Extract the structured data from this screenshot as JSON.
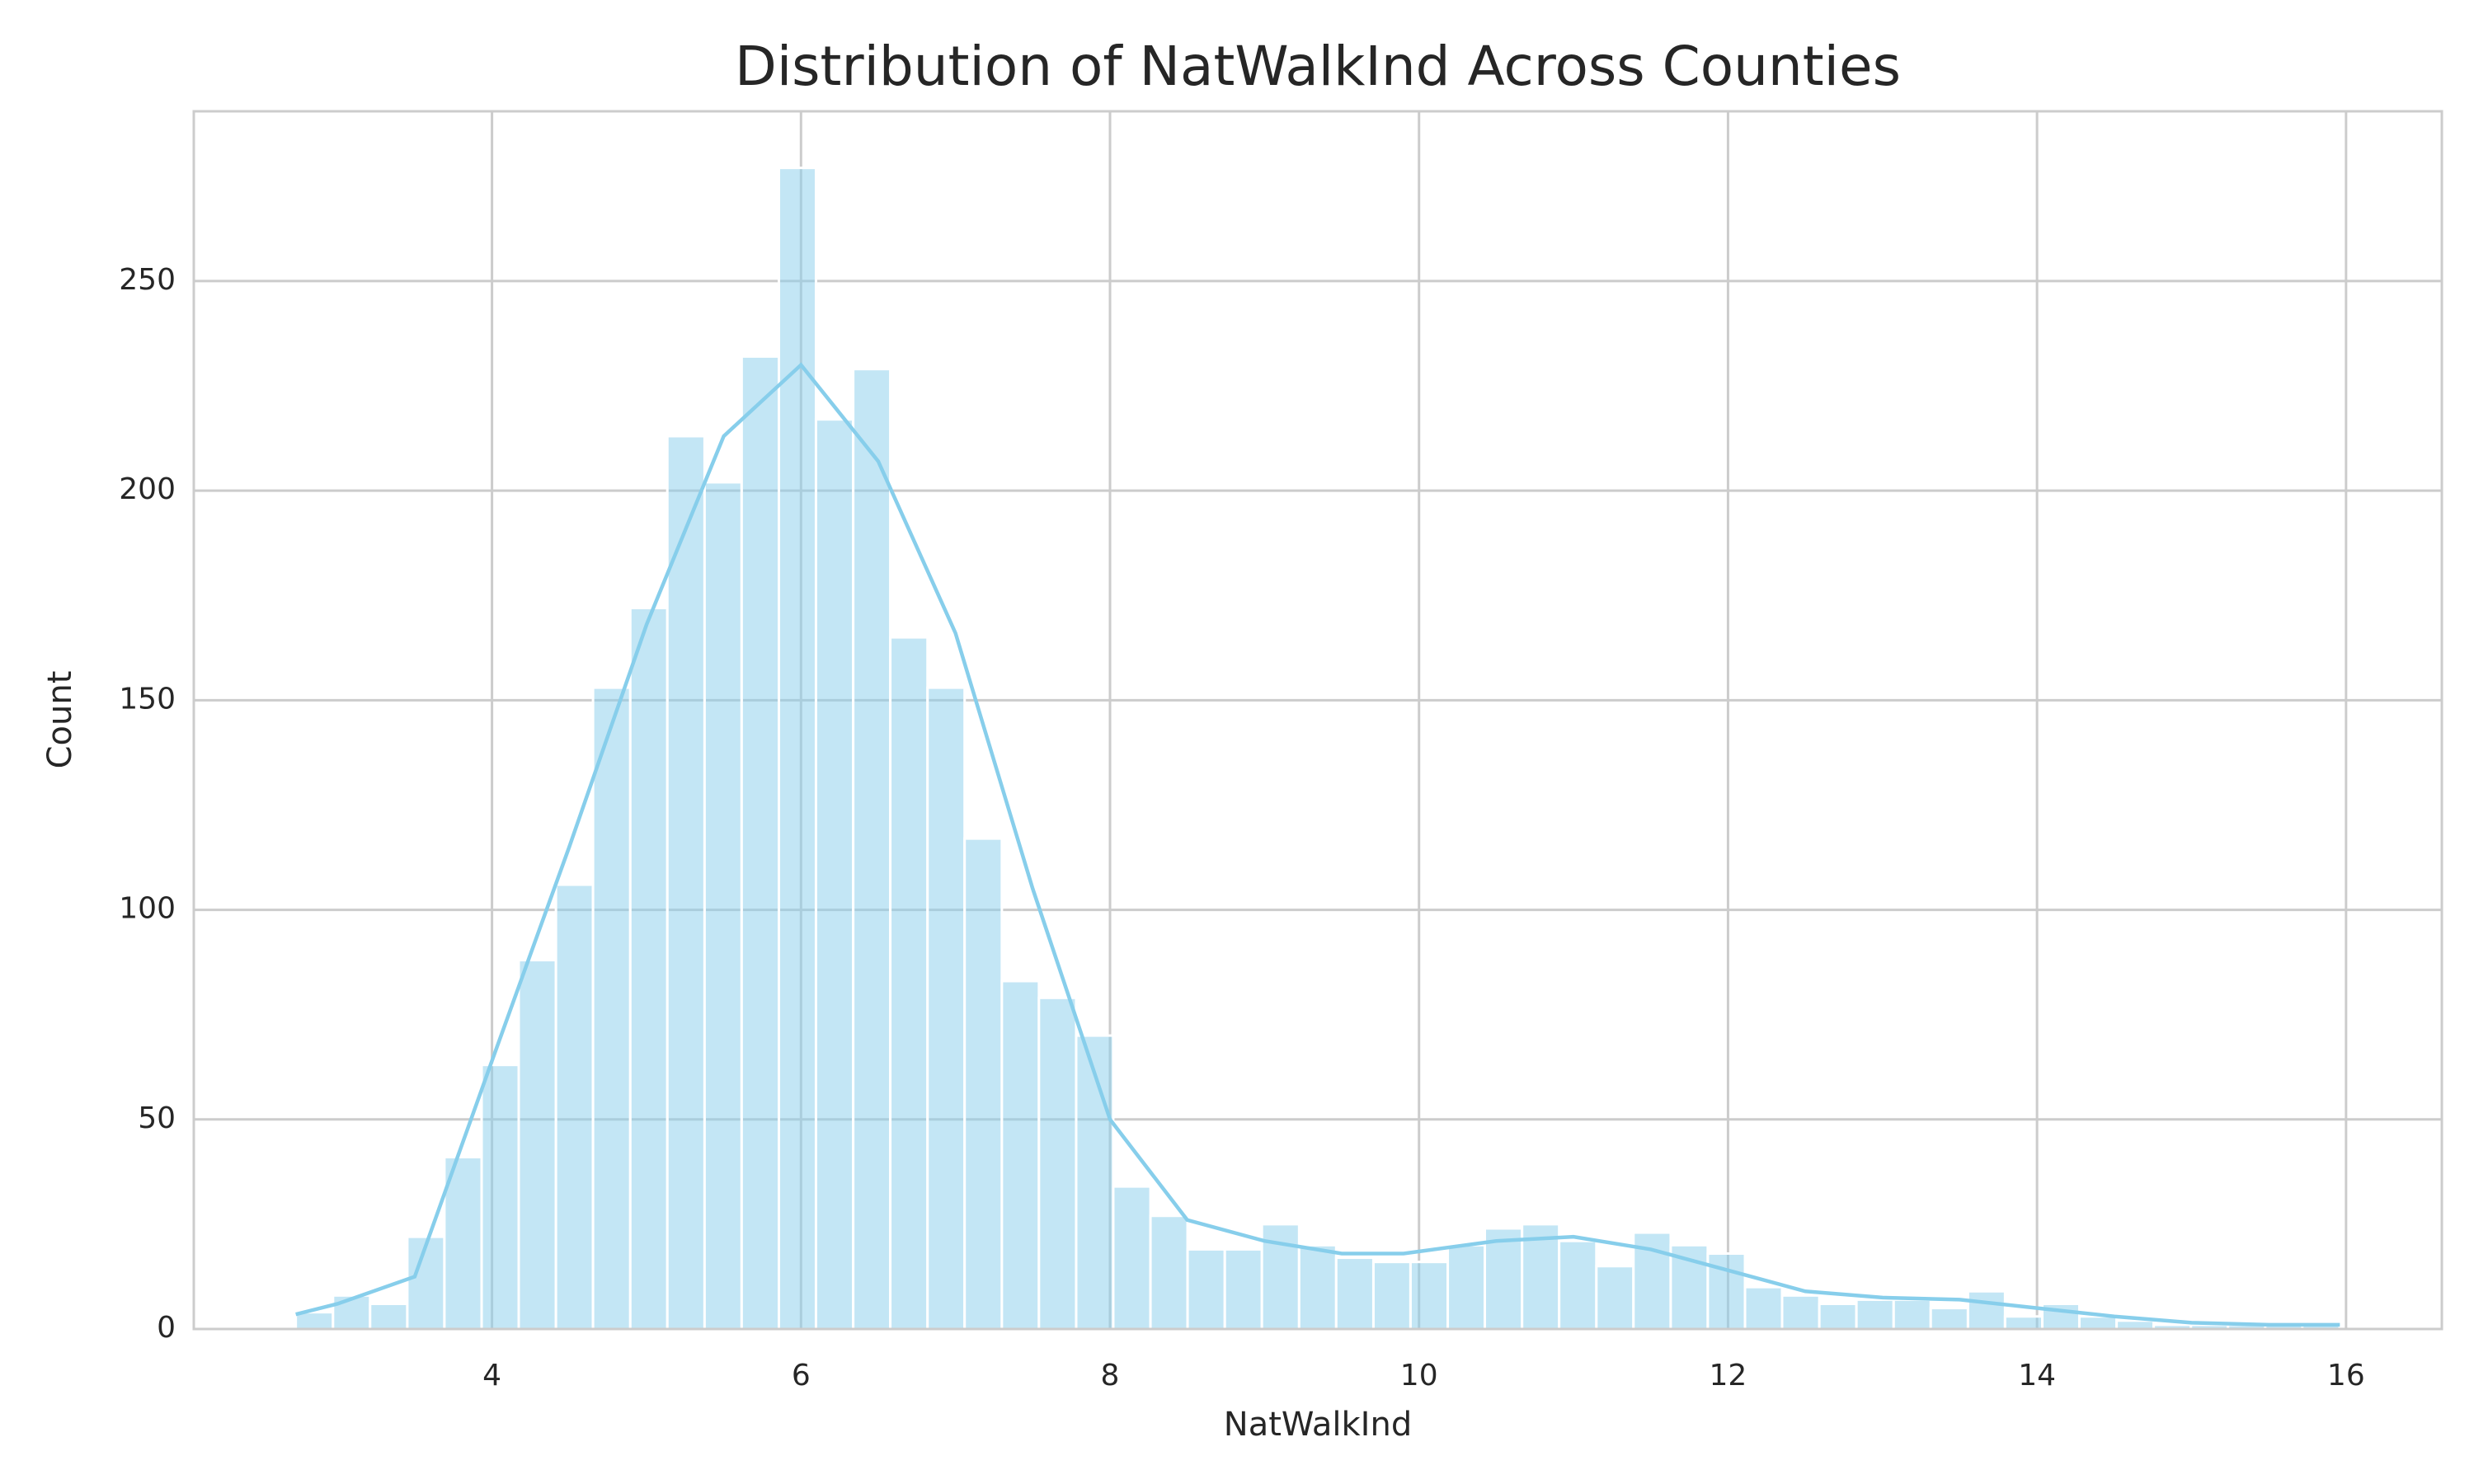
{
  "chart_data": {
    "type": "histogram",
    "title": "Distribution of NatWalkInd Across Counties",
    "x_label": "NatWalkInd",
    "y_label": "Count",
    "bins": [
      2.73,
      2.971,
      3.211,
      3.452,
      3.692,
      3.933,
      4.173,
      4.414,
      4.654,
      4.895,
      5.135,
      5.376,
      5.616,
      5.857,
      6.097,
      6.338,
      6.578,
      6.819,
      7.059,
      7.3,
      7.54,
      7.781,
      8.021,
      8.262,
      8.502,
      8.743,
      8.983,
      9.224,
      9.464,
      9.705,
      9.945,
      10.186,
      10.426,
      10.667,
      10.907,
      11.148,
      11.388,
      11.629,
      11.869,
      12.11,
      12.35,
      12.591,
      12.831,
      13.072,
      13.312,
      13.553,
      13.793,
      14.034,
      14.274,
      14.515,
      14.755,
      14.996,
      15.236,
      15.477,
      15.717,
      15.958
    ],
    "values": [
      4,
      8,
      6,
      22,
      41,
      63,
      88,
      106,
      153,
      172,
      213,
      202,
      232,
      277,
      217,
      229,
      165,
      153,
      117,
      83,
      79,
      70,
      34,
      27,
      19,
      19,
      25,
      20,
      17,
      16,
      16,
      20,
      24,
      25,
      21,
      15,
      23,
      20,
      18,
      10,
      8,
      6,
      7,
      7,
      5,
      9,
      3,
      6,
      3,
      2,
      1,
      1,
      1,
      1,
      1
    ],
    "color": "#87ceeb",
    "kde": {
      "color": "#87ceeb",
      "x": [
        2.73,
        3.0,
        3.5,
        4.0,
        4.5,
        5.0,
        5.5,
        6.0,
        6.5,
        7.0,
        7.5,
        8.0,
        8.5,
        9.0,
        9.5,
        9.9,
        10.5,
        11.0,
        11.5,
        12.0,
        12.5,
        13.0,
        13.5,
        14.0,
        14.5,
        15.0,
        15.5,
        15.96
      ],
      "values": [
        3.5,
        6,
        12.5,
        64,
        115,
        168,
        213,
        230,
        207,
        166,
        105,
        50,
        26,
        21,
        18,
        18,
        21,
        22,
        19,
        14,
        9,
        7.5,
        7,
        5,
        3,
        1.5,
        1,
        1
      ]
    },
    "xlim": [
      2.07,
      16.62
    ],
    "ylim": [
      0,
      290.5
    ],
    "xticks": [
      4,
      6,
      8,
      10,
      12,
      14,
      16
    ],
    "yticks": [
      0,
      50,
      100,
      150,
      200,
      250
    ],
    "grid": true
  }
}
